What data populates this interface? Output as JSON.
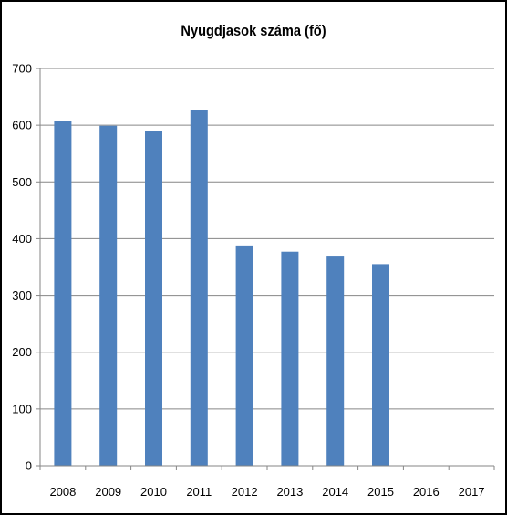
{
  "chart_data": {
    "type": "bar",
    "title": "Nyugdjasok száma (fő)",
    "categories": [
      "2008",
      "2009",
      "2010",
      "2011",
      "2012",
      "2013",
      "2014",
      "2015",
      "2016",
      "2017"
    ],
    "values": [
      608,
      599,
      590,
      627,
      388,
      377,
      370,
      355,
      null,
      null
    ],
    "ylim": [
      0,
      700
    ],
    "yticks": [
      0,
      100,
      200,
      300,
      400,
      500,
      600,
      700
    ],
    "grid": true,
    "legend": "none",
    "colors": {
      "bar": "#4f81bd",
      "grid": "#868686",
      "axis": "#868686"
    }
  }
}
